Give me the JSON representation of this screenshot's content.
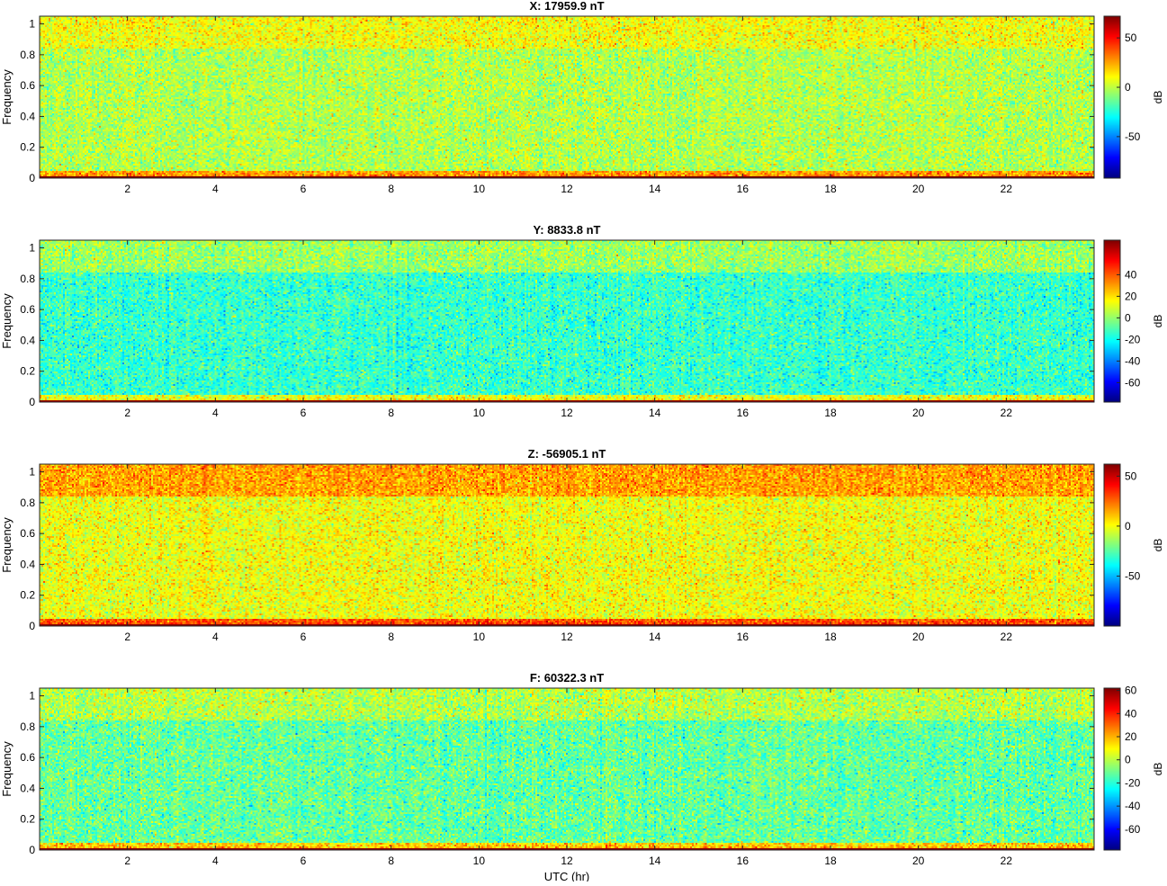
{
  "chart_data": [
    {
      "type": "heatmap",
      "title": "X: 17959.9 nT",
      "ylabel": "Frequency",
      "xlabel": "",
      "xlim": [
        0,
        24
      ],
      "ylim": [
        0,
        1.05
      ],
      "x_ticks": [
        "2",
        "4",
        "6",
        "8",
        "10",
        "12",
        "14",
        "16",
        "18",
        "20",
        "22"
      ],
      "y_ticks": [
        "0",
        "0.2",
        "0.4",
        "0.6",
        "0.8",
        "1"
      ],
      "colorbar": {
        "label": "dB",
        "range": [
          -92,
          72
        ],
        "ticks": [
          "50",
          "0",
          "-50"
        ],
        "tick_values": [
          50,
          0,
          -50
        ]
      },
      "colormap": "jet",
      "levels": {
        "top_band_db": 8,
        "body_db": -2,
        "low_band_db": 25,
        "dc_line_db": 72,
        "noise_db": 14
      }
    },
    {
      "type": "heatmap",
      "title": "Y: 8833.8 nT",
      "ylabel": "Frequency",
      "xlabel": "",
      "xlim": [
        0,
        24
      ],
      "ylim": [
        0,
        1.05
      ],
      "x_ticks": [
        "2",
        "4",
        "6",
        "8",
        "10",
        "12",
        "14",
        "16",
        "18",
        "20",
        "22"
      ],
      "y_ticks": [
        "0",
        "0.2",
        "0.4",
        "0.6",
        "0.8",
        "1"
      ],
      "colorbar": {
        "label": "dB",
        "range": [
          -78,
          72
        ],
        "ticks": [
          "40",
          "20",
          "0",
          "-20",
          "-40",
          "-60"
        ],
        "tick_values": [
          40,
          20,
          0,
          -20,
          -40,
          -60
        ]
      },
      "colormap": "jet",
      "levels": {
        "top_band_db": 0,
        "body_db": -14,
        "low_band_db": 12,
        "dc_line_db": 68,
        "noise_db": 13
      }
    },
    {
      "type": "heatmap",
      "title": "Z: -56905.1 nT",
      "ylabel": "Frequency",
      "xlabel": "",
      "xlim": [
        0,
        24
      ],
      "ylim": [
        0,
        1.05
      ],
      "x_ticks": [
        "2",
        "4",
        "6",
        "8",
        "10",
        "12",
        "14",
        "16",
        "18",
        "20",
        "22"
      ],
      "y_ticks": [
        "0",
        "0.2",
        "0.4",
        "0.6",
        "0.8",
        "1"
      ],
      "colorbar": {
        "label": "dB",
        "range": [
          -100,
          62
        ],
        "ticks": [
          "50",
          "0",
          "-50"
        ],
        "tick_values": [
          50,
          0,
          -50
        ]
      },
      "colormap": "jet",
      "levels": {
        "top_band_db": 15,
        "body_db": -1,
        "low_band_db": 28,
        "dc_line_db": 60,
        "noise_db": 14
      }
    },
    {
      "type": "heatmap",
      "title": "F: 60322.3 nT",
      "ylabel": "Frequency",
      "xlabel": "UTC (hr)",
      "xlim": [
        0,
        24
      ],
      "ylim": [
        0,
        1.05
      ],
      "x_ticks": [
        "2",
        "4",
        "6",
        "8",
        "10",
        "12",
        "14",
        "16",
        "18",
        "20",
        "22"
      ],
      "y_ticks": [
        "0",
        "0.2",
        "0.4",
        "0.6",
        "0.8",
        "1"
      ],
      "colorbar": {
        "label": "dB",
        "range": [
          -78,
          62
        ],
        "ticks": [
          "60",
          "40",
          "20",
          "0",
          "-20",
          "-40",
          "-60"
        ],
        "tick_values": [
          60,
          40,
          20,
          0,
          -20,
          -40,
          -60
        ]
      },
      "colormap": "jet",
      "levels": {
        "top_band_db": -2,
        "body_db": -12,
        "low_band_db": 15,
        "dc_line_db": 60,
        "noise_db": 13
      }
    }
  ]
}
